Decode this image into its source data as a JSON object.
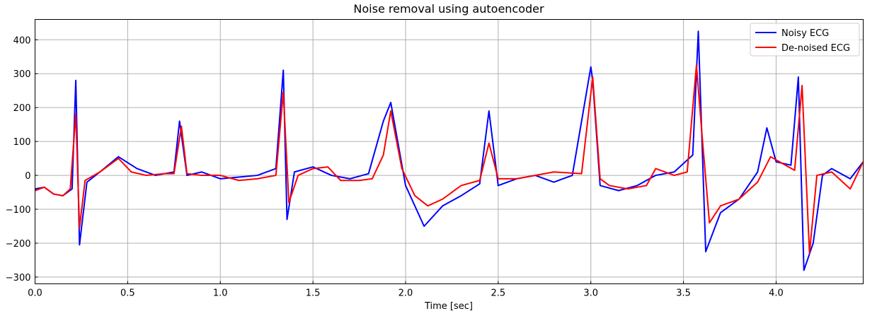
{
  "chart_data": {
    "type": "line",
    "title": "Noise removal using autoencoder",
    "xlabel": "Time [sec]",
    "ylabel": "",
    "xlim": [
      0,
      4.47
    ],
    "ylim": [
      -320,
      460
    ],
    "xticks": [
      0.0,
      0.5,
      1.0,
      1.5,
      2.0,
      2.5,
      3.0,
      3.5,
      4.0
    ],
    "xtick_labels": [
      "0.0",
      "0.5",
      "1.0",
      "1.5",
      "2.0",
      "2.5",
      "3.0",
      "3.5",
      "4.0"
    ],
    "yticks": [
      -300,
      -200,
      -100,
      0,
      100,
      200,
      300,
      400
    ],
    "ytick_labels": [
      "−300",
      "−200",
      "−100",
      "0",
      "100",
      "200",
      "300",
      "400"
    ],
    "grid": true,
    "legend_position": "top-right",
    "series": [
      {
        "name": "Noisy ECG",
        "color": "#0000ff",
        "x": [
          0.0,
          0.05,
          0.1,
          0.15,
          0.2,
          0.22,
          0.24,
          0.28,
          0.35,
          0.45,
          0.55,
          0.65,
          0.75,
          0.78,
          0.82,
          0.9,
          1.0,
          1.1,
          1.2,
          1.3,
          1.34,
          1.36,
          1.4,
          1.5,
          1.6,
          1.7,
          1.8,
          1.88,
          1.92,
          2.0,
          2.1,
          2.2,
          2.3,
          2.4,
          2.45,
          2.5,
          2.6,
          2.7,
          2.8,
          2.9,
          3.0,
          3.01,
          3.05,
          3.15,
          3.25,
          3.35,
          3.45,
          3.55,
          3.58,
          3.62,
          3.7,
          3.8,
          3.9,
          3.95,
          4.0,
          4.08,
          4.12,
          4.15,
          4.2,
          4.25,
          4.3,
          4.4,
          4.47
        ],
        "y": [
          -40,
          -35,
          -55,
          -60,
          -40,
          280,
          -205,
          -20,
          10,
          55,
          20,
          0,
          10,
          160,
          0,
          10,
          -10,
          -5,
          0,
          20,
          310,
          -130,
          10,
          25,
          0,
          -10,
          5,
          160,
          215,
          -30,
          -150,
          -90,
          -60,
          -25,
          190,
          -30,
          -10,
          0,
          -20,
          0,
          320,
          280,
          -30,
          -45,
          -30,
          0,
          10,
          60,
          425,
          -225,
          -110,
          -70,
          10,
          140,
          40,
          30,
          290,
          -280,
          -200,
          0,
          20,
          -10,
          40
        ]
      },
      {
        "name": "De-noised ECG",
        "color": "#ff0000",
        "x": [
          0.0,
          0.05,
          0.1,
          0.15,
          0.19,
          0.22,
          0.24,
          0.27,
          0.35,
          0.45,
          0.52,
          0.6,
          0.7,
          0.75,
          0.79,
          0.82,
          0.9,
          1.0,
          1.1,
          1.2,
          1.3,
          1.34,
          1.37,
          1.42,
          1.5,
          1.58,
          1.65,
          1.75,
          1.82,
          1.88,
          1.92,
          1.98,
          2.05,
          2.12,
          2.2,
          2.3,
          2.4,
          2.45,
          2.5,
          2.6,
          2.7,
          2.8,
          2.95,
          3.01,
          3.05,
          3.1,
          3.2,
          3.3,
          3.35,
          3.45,
          3.52,
          3.57,
          3.6,
          3.64,
          3.7,
          3.8,
          3.9,
          3.97,
          4.05,
          4.1,
          4.14,
          4.18,
          4.22,
          4.3,
          4.4,
          4.47
        ],
        "y": [
          -45,
          -35,
          -55,
          -60,
          -40,
          180,
          -155,
          -15,
          10,
          50,
          10,
          0,
          5,
          5,
          145,
          5,
          0,
          0,
          -15,
          -10,
          0,
          245,
          -80,
          0,
          20,
          25,
          -15,
          -15,
          -10,
          60,
          190,
          20,
          -60,
          -90,
          -70,
          -30,
          -15,
          95,
          -10,
          -10,
          0,
          10,
          5,
          290,
          -10,
          -30,
          -40,
          -30,
          20,
          0,
          10,
          325,
          120,
          -140,
          -90,
          -70,
          -20,
          55,
          30,
          15,
          265,
          -230,
          0,
          10,
          -40,
          40
        ]
      }
    ]
  }
}
